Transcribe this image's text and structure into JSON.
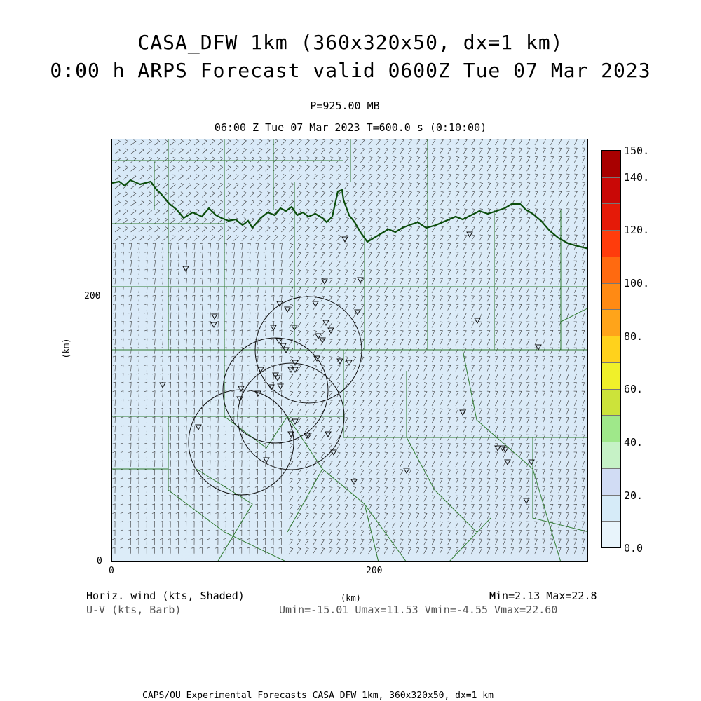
{
  "title_line1": "CASA_DFW 1km (360x320x50, dx=1 km)",
  "title_line2": "0:00 h ARPS Forecast valid 0600Z Tue 07 Mar 2023",
  "pressure": "P=925.00 MB",
  "time_line": "06:00 Z Tue 07 Mar 2023    T=600.0 s (0:10:00)",
  "y_axis_label": "(km)",
  "x_axis_label": "(km)",
  "y_ticks": [
    "200",
    "0"
  ],
  "x_ticks": [
    "0",
    "200"
  ],
  "colorbar": {
    "labels": [
      "150.",
      "140.",
      "120.",
      "100.",
      "80.",
      "60.",
      "40.",
      "20.",
      "0.0"
    ],
    "colors": [
      "#e8f4fb",
      "#d6ebf8",
      "#d1dcf4",
      "#c6f2c6",
      "#9fe88a",
      "#cce33a",
      "#f0f02a",
      "#ffd21c",
      "#ffa41a",
      "#ff8a14",
      "#ff6a10",
      "#ff3c0c",
      "#e51a08",
      "#c90806",
      "#a80000"
    ]
  },
  "legend_left1": "Horiz. wind (kts, Shaded)",
  "legend_left2": "U-V (kts, Barb)",
  "stats_line1": "Min=2.13 Max=22.8",
  "stats_line2": "Umin=-15.01 Umax=11.53 Vmin=-4.55 Vmax=22.60",
  "footer": "CAPS/OU Experimental Forecasts  CASA DFW 1km, 360x320x50, dx=1 km",
  "map_colors": {
    "background": "#dcecf8",
    "border": "#0b4d0b",
    "county": "#2f7a2f",
    "barb": "#2a2a2a",
    "radar_ring": "#111111"
  }
}
